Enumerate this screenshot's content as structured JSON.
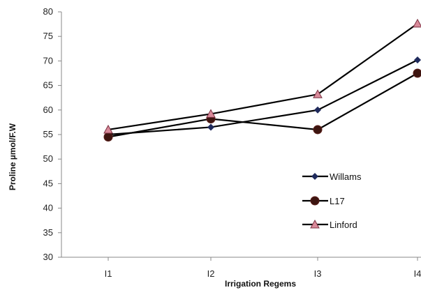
{
  "chart_data": {
    "type": "line",
    "title": "",
    "xlabel": "Irrigation Regems",
    "ylabel": "Proline µmol/F.W",
    "categories": [
      "I1",
      "I2",
      "I3",
      "I4"
    ],
    "ylim": [
      30,
      80
    ],
    "yticks": [
      "30",
      "35",
      "40",
      "45",
      "50",
      "55",
      "60",
      "65",
      "70",
      "75",
      "80"
    ],
    "grid": false,
    "legend_position": "right",
    "series": [
      {
        "name": "Willams",
        "values": [
          55.0,
          56.5,
          60.0,
          70.2
        ],
        "color": "#1f2a5c",
        "marker": "diamond"
      },
      {
        "name": "L17",
        "values": [
          54.5,
          58.2,
          56.0,
          67.5
        ],
        "color": "#5a1f1a",
        "marker": "circle"
      },
      {
        "name": "Linford",
        "values": [
          56.0,
          59.2,
          63.2,
          77.6
        ],
        "color": "#d98a9a",
        "marker": "triangle"
      }
    ]
  }
}
